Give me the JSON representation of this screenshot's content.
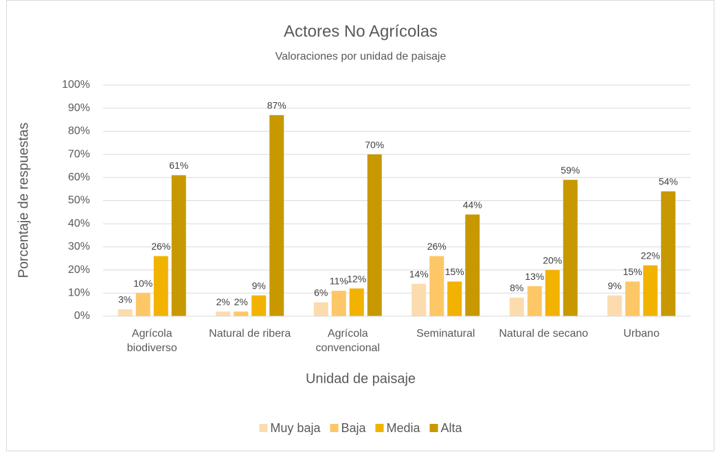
{
  "chart_data": {
    "type": "bar",
    "title": "Actores No Agrícolas",
    "subtitle": "Valoraciones por unidad de paisaje",
    "x_label": "Unidad de paisaje",
    "y_label": "Porcentaje de respuestas",
    "categories": [
      "Agrícola biodiverso",
      "Natural de ribera",
      "Agrícola convencional",
      "Seminatural",
      "Natural de secano",
      "Urbano"
    ],
    "series": [
      {
        "name": "Muy baja",
        "color": "#fcdcae",
        "values": [
          3,
          2,
          6,
          14,
          8,
          9
        ],
        "value_labels": [
          "3%",
          "2%",
          "6%",
          "14%",
          "8%",
          "9%"
        ]
      },
      {
        "name": "Baja",
        "color": "#fdc767",
        "values": [
          10,
          2,
          11,
          26,
          13,
          15
        ],
        "value_labels": [
          "10%",
          "2%",
          "11%",
          "26%",
          "13%",
          "15%"
        ]
      },
      {
        "name": "Media",
        "color": "#f2b200",
        "values": [
          26,
          9,
          12,
          15,
          20,
          22
        ],
        "value_labels": [
          "26%",
          "9%",
          "12%",
          "15%",
          "20%",
          "22%"
        ]
      },
      {
        "name": "Alta",
        "color": "#c89800",
        "values": [
          61,
          87,
          70,
          44,
          59,
          54
        ],
        "value_labels": [
          "61%",
          "87%",
          "70%",
          "44%",
          "59%",
          "54%"
        ]
      }
    ],
    "ylim": [
      0,
      100
    ],
    "yticks": [
      {
        "value": 0,
        "label": "0%"
      },
      {
        "value": 10,
        "label": "10%"
      },
      {
        "value": 20,
        "label": "20%"
      },
      {
        "value": 30,
        "label": "30%"
      },
      {
        "value": 40,
        "label": "40%"
      },
      {
        "value": 50,
        "label": "50%"
      },
      {
        "value": 60,
        "label": "60%"
      },
      {
        "value": 70,
        "label": "70%"
      },
      {
        "value": 80,
        "label": "80%"
      },
      {
        "value": 90,
        "label": "90%"
      },
      {
        "value": 100,
        "label": "100%"
      }
    ],
    "grid": true,
    "legend": "bottom"
  }
}
